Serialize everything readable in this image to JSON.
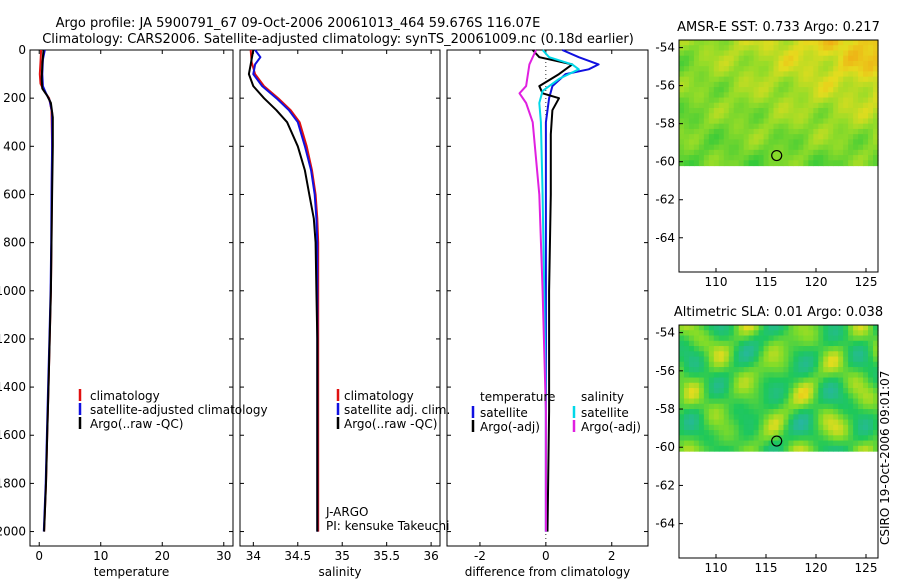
{
  "header": {
    "title_line1": "Argo profile: JA 5900791_67 09-Oct-2006 20061013_464 59.676S 116.07E",
    "title_line2": "Climatology: CARS2006. Satellite-adjusted climatology: synTS_20061009.nc (0.18d earlier)"
  },
  "colors": {
    "climatology": "#e01010",
    "satellite": "#1010e0",
    "argo": "#000000",
    "cyan": "#00d8e8",
    "magenta": "#e020e0"
  },
  "chart_data": [
    {
      "id": "temperature",
      "type": "line",
      "xlabel": "temperature",
      "xlim": [
        -1.5,
        31.5
      ],
      "xticks": [
        0,
        10,
        20,
        30
      ],
      "ylim": [
        0,
        2060
      ],
      "yticks": [
        0,
        200,
        400,
        600,
        800,
        1000,
        1200,
        1400,
        1600,
        1800,
        2000
      ],
      "y_reversed": true,
      "legend": {
        "position": "lower-right",
        "entries": [
          "climatology",
          "satellite-adjusted climatology",
          "Argo(..raw -QC)"
        ]
      },
      "series": [
        {
          "name": "climatology",
          "color_key": "climatology",
          "points": [
            [
              0.3,
              0
            ],
            [
              0.2,
              50
            ],
            [
              0.1,
              100
            ],
            [
              0.2,
              140
            ],
            [
              0.8,
              170
            ],
            [
              1.6,
              200
            ],
            [
              2.0,
              250
            ],
            [
              2.1,
              400
            ],
            [
              2.05,
              600
            ],
            [
              2.0,
              800
            ],
            [
              1.9,
              1000
            ],
            [
              1.7,
              1200
            ],
            [
              1.5,
              1400
            ],
            [
              1.3,
              1600
            ],
            [
              1.1,
              1800
            ],
            [
              0.8,
              2000
            ]
          ]
        },
        {
          "name": "satellite-adjusted climatology",
          "color_key": "satellite",
          "points": [
            [
              0.9,
              0
            ],
            [
              0.6,
              40
            ],
            [
              0.5,
              100
            ],
            [
              0.6,
              150
            ],
            [
              1.1,
              180
            ],
            [
              1.7,
              210
            ],
            [
              2.1,
              260
            ],
            [
              2.1,
              400
            ],
            [
              2.0,
              600
            ],
            [
              1.95,
              800
            ],
            [
              1.85,
              1000
            ],
            [
              1.65,
              1200
            ],
            [
              1.45,
              1400
            ],
            [
              1.25,
              1600
            ],
            [
              1.05,
              1800
            ],
            [
              0.75,
              2000
            ]
          ]
        },
        {
          "name": "Argo(..raw -QC)",
          "color_key": "argo",
          "points": [
            [
              0.7,
              0
            ],
            [
              0.5,
              60
            ],
            [
              0.4,
              120
            ],
            [
              0.5,
              160
            ],
            [
              1.3,
              190
            ],
            [
              1.9,
              220
            ],
            [
              2.2,
              280
            ],
            [
              2.2,
              400
            ],
            [
              2.1,
              600
            ],
            [
              2.0,
              800
            ],
            [
              1.9,
              1000
            ],
            [
              1.7,
              1200
            ],
            [
              1.5,
              1400
            ],
            [
              1.3,
              1600
            ],
            [
              1.1,
              1800
            ],
            [
              0.8,
              2000
            ]
          ]
        }
      ]
    },
    {
      "id": "salinity",
      "type": "line",
      "xlabel": "salinity",
      "xlim": [
        33.85,
        36.1
      ],
      "xticks": [
        34,
        34.5,
        35,
        35.5,
        36
      ],
      "ylim": [
        0,
        2060
      ],
      "y_reversed": true,
      "legend": {
        "position": "lower-right",
        "entries": [
          "climatology",
          "satellite adj. clim.",
          "Argo(..raw -QC)"
        ]
      },
      "annotations": [
        "J-ARGO",
        "PI: kensuke Takeuchi"
      ],
      "series": [
        {
          "name": "climatology",
          "color_key": "climatology",
          "points": [
            [
              33.97,
              0
            ],
            [
              33.98,
              50
            ],
            [
              34.02,
              100
            ],
            [
              34.12,
              150
            ],
            [
              34.28,
              200
            ],
            [
              34.42,
              250
            ],
            [
              34.52,
              300
            ],
            [
              34.6,
              400
            ],
            [
              34.66,
              500
            ],
            [
              34.7,
              600
            ],
            [
              34.72,
              700
            ],
            [
              34.73,
              800
            ],
            [
              34.73,
              1000
            ],
            [
              34.73,
              1200
            ],
            [
              34.73,
              1500
            ],
            [
              34.73,
              1800
            ],
            [
              34.73,
              2000
            ]
          ]
        },
        {
          "name": "satellite adj. clim.",
          "color_key": "satellite",
          "points": [
            [
              34.02,
              0
            ],
            [
              34.08,
              30
            ],
            [
              34.02,
              60
            ],
            [
              34.0,
              100
            ],
            [
              34.1,
              150
            ],
            [
              34.26,
              200
            ],
            [
              34.4,
              250
            ],
            [
              34.5,
              300
            ],
            [
              34.58,
              400
            ],
            [
              34.65,
              500
            ],
            [
              34.69,
              600
            ],
            [
              34.71,
              700
            ],
            [
              34.72,
              800
            ],
            [
              34.72,
              1000
            ],
            [
              34.72,
              1200
            ],
            [
              34.72,
              1500
            ],
            [
              34.72,
              1800
            ],
            [
              34.72,
              2000
            ]
          ]
        },
        {
          "name": "Argo(..raw -QC)",
          "color_key": "argo",
          "points": [
            [
              34.0,
              0
            ],
            [
              33.97,
              60
            ],
            [
              33.95,
              100
            ],
            [
              34.0,
              150
            ],
            [
              34.12,
              200
            ],
            [
              34.26,
              250
            ],
            [
              34.38,
              300
            ],
            [
              34.5,
              400
            ],
            [
              34.58,
              500
            ],
            [
              34.63,
              600
            ],
            [
              34.68,
              700
            ],
            [
              34.7,
              800
            ],
            [
              34.71,
              1000
            ],
            [
              34.72,
              1200
            ],
            [
              34.72,
              1500
            ],
            [
              34.72,
              1800
            ],
            [
              34.72,
              2000
            ]
          ]
        }
      ]
    },
    {
      "id": "difference",
      "type": "line",
      "xlabel": "difference from climatology",
      "xlim": [
        -3,
        3.1
      ],
      "xticks": [
        -2,
        0,
        2
      ],
      "ylim": [
        0,
        2060
      ],
      "y_reversed": true,
      "legend": {
        "position": "lower-center",
        "columns": [
          {
            "title": "temperature",
            "entries": [
              "satellite",
              "Argo(-adj)"
            ]
          },
          {
            "title": "salinity",
            "entries": [
              "satellite",
              "Argo(-adj)"
            ]
          }
        ]
      },
      "series": [
        {
          "name": "satellite",
          "group": "temperature",
          "color_key": "satellite",
          "points": [
            [
              0.5,
              0
            ],
            [
              1.0,
              30
            ],
            [
              1.6,
              60
            ],
            [
              1.3,
              80
            ],
            [
              0.6,
              100
            ],
            [
              0.2,
              150
            ],
            [
              0.1,
              200
            ],
            [
              0.0,
              300
            ],
            [
              0.0,
              600
            ],
            [
              0.0,
              1000
            ],
            [
              0.0,
              1500
            ],
            [
              0.0,
              2000
            ]
          ]
        },
        {
          "name": "Argo(-adj)",
          "group": "temperature",
          "color_key": "argo",
          "points": [
            [
              -0.4,
              0
            ],
            [
              -0.2,
              30
            ],
            [
              0.8,
              60
            ],
            [
              0.4,
              100
            ],
            [
              -0.2,
              150
            ],
            [
              -0.1,
              180
            ],
            [
              0.4,
              200
            ],
            [
              0.2,
              250
            ],
            [
              0.15,
              350
            ],
            [
              0.15,
              600
            ],
            [
              0.1,
              1000
            ],
            [
              0.1,
              1500
            ],
            [
              0.05,
              2000
            ]
          ]
        },
        {
          "name": "satellite",
          "group": "salinity",
          "color_key": "cyan",
          "points": [
            [
              -0.1,
              0
            ],
            [
              0.1,
              30
            ],
            [
              0.8,
              60
            ],
            [
              1.0,
              80
            ],
            [
              0.4,
              120
            ],
            [
              -0.1,
              170
            ],
            [
              -0.2,
              220
            ],
            [
              -0.15,
              300
            ],
            [
              -0.1,
              600
            ],
            [
              -0.05,
              1000
            ],
            [
              0.0,
              1500
            ],
            [
              0.0,
              2000
            ]
          ]
        },
        {
          "name": "Argo(-adj)",
          "group": "salinity",
          "color_key": "magenta",
          "points": [
            [
              -0.3,
              0
            ],
            [
              -0.5,
              60
            ],
            [
              -0.6,
              150
            ],
            [
              -0.8,
              180
            ],
            [
              -0.6,
              220
            ],
            [
              -0.4,
              300
            ],
            [
              -0.2,
              600
            ],
            [
              -0.1,
              1000
            ],
            [
              0.0,
              1500
            ],
            [
              0.0,
              2000
            ]
          ]
        }
      ]
    },
    {
      "id": "sst_map",
      "type": "heatmap",
      "title": "AMSR-E SST: 0.733 Argo: 0.217",
      "xlim": [
        106.3,
        126.2
      ],
      "ylim": [
        -65.8,
        -53.6
      ],
      "xticks": [
        110,
        115,
        120,
        125
      ],
      "yticks": [
        -54,
        -56,
        -58,
        -60,
        -62,
        -64
      ],
      "data_ylim": [
        -60.2,
        -53.6
      ],
      "marker": {
        "lon": 116.07,
        "lat": -59.676
      }
    },
    {
      "id": "sla_map",
      "type": "heatmap",
      "title": "Altimetric SLA: 0.01 Argo: 0.038",
      "xlim": [
        106.3,
        126.2
      ],
      "ylim": [
        -65.8,
        -53.6
      ],
      "xticks": [
        110,
        115,
        120,
        125
      ],
      "yticks": [
        -54,
        -56,
        -58,
        -60,
        -62,
        -64
      ],
      "data_ylim": [
        -60.2,
        -53.6
      ],
      "marker": {
        "lon": 116.07,
        "lat": -59.676
      }
    }
  ],
  "footer": {
    "credit": "CSIRO 19-Oct-2006 09:01:07"
  }
}
